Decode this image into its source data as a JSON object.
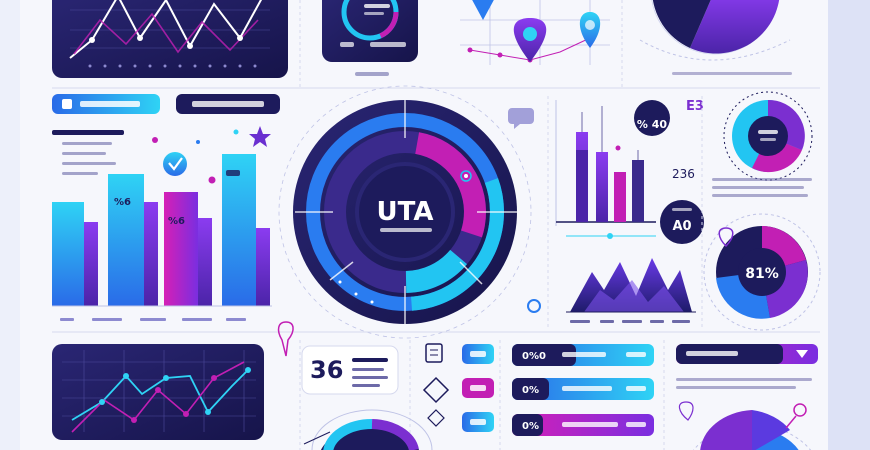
{
  "colors": {
    "navy": "#1d1b5c",
    "deep_purple": "#3a2a8c",
    "purple": "#7b2fd0",
    "magenta": "#c21fb4",
    "cyan": "#22c5f2",
    "blue": "#2a7cf0",
    "light_bg": "#f6f7fc"
  },
  "center_dial": {
    "title": "UTA"
  },
  "bar_chart_left": {
    "label_a": "%6",
    "label_b": "%6"
  },
  "right_stats": {
    "badge_a": "% 40",
    "badge_b": "A0",
    "badge_c": "236",
    "corner_mark": "E3"
  },
  "donut_right": {
    "value_label": "81%"
  },
  "stat_card": {
    "number": "36"
  },
  "progress_bars": {
    "bar_1_label": "0%0",
    "bar_2_label": "0%",
    "bar_3_label": "0%",
    "bar_1_fill": 0.45,
    "bar_2_fill": 0.65,
    "bar_3_fill": 0.55,
    "side_bar_fill": 0.75
  },
  "icons": [
    "triangle-marker-icon",
    "map-pin-icon",
    "star-icon",
    "shield-check-icon",
    "speech-bubble-icon",
    "diamond-icon",
    "scroll-icon",
    "ring-icon",
    "location-pin-outline-icon"
  ]
}
